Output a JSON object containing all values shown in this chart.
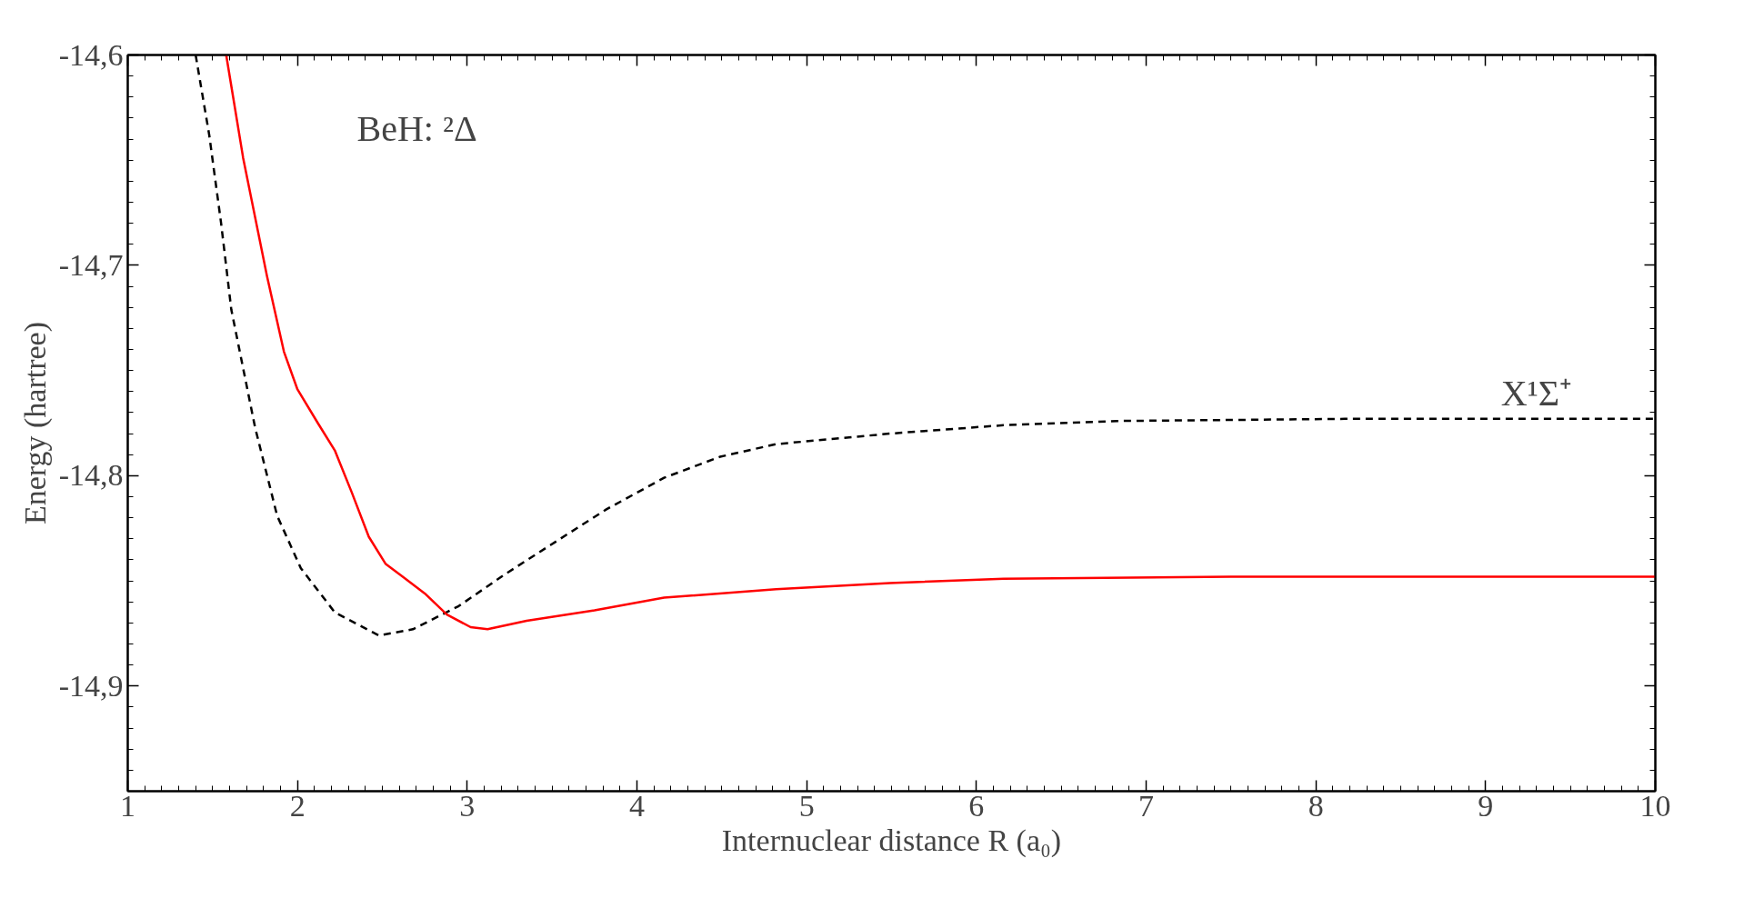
{
  "chart_data": {
    "type": "line",
    "xlabel": "Internuclear distance R (a₀)",
    "ylabel": "Energy (hartree)",
    "xlim": [
      1,
      10
    ],
    "ylim": [
      -14.95,
      -14.6
    ],
    "xticks": [
      1,
      2,
      3,
      4,
      5,
      6,
      7,
      8,
      9,
      10
    ],
    "yticks": [
      {
        "value": -14.6,
        "label": "-14,6"
      },
      {
        "value": -14.7,
        "label": "-14,7"
      },
      {
        "value": -14.8,
        "label": "-14,8"
      },
      {
        "value": -14.9,
        "label": "-14,9"
      }
    ],
    "grid": false,
    "marker": "none",
    "annotations": [
      "BeH: ²Δ",
      {
        "text": "X¹Σ⁺",
        "x": 9.3,
        "y": -14.773
      }
    ],
    "series": [
      {
        "color": "#000000",
        "line_style": "dashed",
        "x": [
          1.4,
          1.48,
          1.55,
          1.61,
          1.75,
          1.88,
          2.02,
          2.22,
          2.48,
          2.68,
          2.95,
          3.22,
          3.49,
          3.82,
          4.16,
          4.49,
          4.82,
          5.49,
          6.16,
          6.83,
          8.17,
          10
        ],
        "values": [
          -14.6,
          -14.638,
          -14.68,
          -14.721,
          -14.777,
          -14.819,
          -14.844,
          -14.865,
          -14.876,
          -14.873,
          -14.862,
          -14.847,
          -14.833,
          -14.816,
          -14.801,
          -14.791,
          -14.785,
          -14.78,
          -14.776,
          -14.774,
          -14.773,
          -14.773
        ]
      },
      {
        "color": "#ff0000",
        "line_style": "solid",
        "x": [
          1.58,
          1.68,
          1.82,
          1.92,
          2.0,
          2.12,
          2.22,
          2.32,
          2.42,
          2.52,
          2.62,
          2.75,
          2.88,
          3.02,
          3.12,
          3.35,
          3.75,
          4.16,
          4.82,
          5.49,
          6.16,
          7.5,
          10
        ],
        "values": [
          -14.6,
          -14.649,
          -14.705,
          -14.741,
          -14.759,
          -14.775,
          -14.788,
          -14.808,
          -14.829,
          -14.842,
          -14.848,
          -14.856,
          -14.866,
          -14.872,
          -14.873,
          -14.869,
          -14.864,
          -14.858,
          -14.854,
          -14.851,
          -14.849,
          -14.848,
          -14.848
        ]
      }
    ]
  }
}
